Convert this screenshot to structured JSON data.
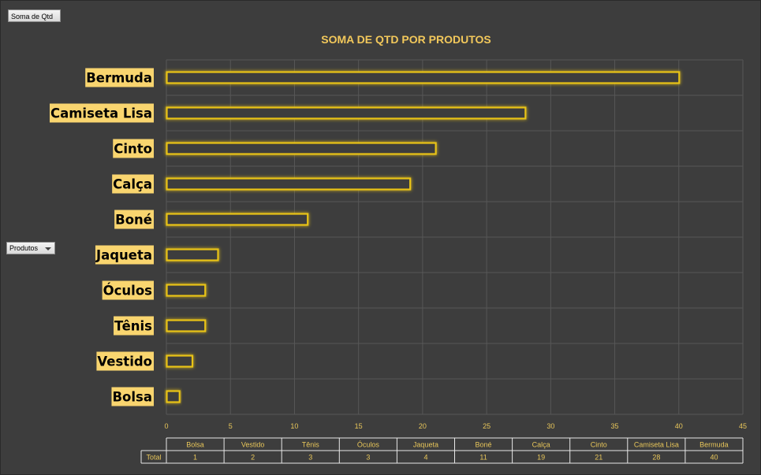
{
  "pivot": {
    "field_button_label": "Soma de Qtd",
    "filter_label": "Produtos",
    "table_row_label": "Total"
  },
  "chart_data": {
    "type": "bar",
    "orientation": "horizontal",
    "title": "SOMA DE QTD POR PRODUTOS",
    "categories": [
      "Bolsa",
      "Vestido",
      "Tênis",
      "Óculos",
      "Jaqueta",
      "Boné",
      "Calça",
      "Cinto",
      "Camiseta Lisa",
      "Bermuda"
    ],
    "values": [
      1,
      2,
      3,
      3,
      4,
      11,
      19,
      21,
      28,
      40
    ],
    "table_headers": [
      "Bolsa",
      "Vestido",
      "Tênis",
      "Óculos",
      "Jaqueta",
      "Boné",
      "Calça",
      "Cinto",
      "Camiseta Lisa",
      "Bermuda"
    ],
    "xlim": [
      0,
      45
    ],
    "x_ticks": [
      0,
      5,
      10,
      15,
      20,
      25,
      30,
      35,
      40,
      45
    ],
    "xlabel": "",
    "ylabel": "",
    "grid": true,
    "legend": "none",
    "colors": {
      "background": "#3d3d3d",
      "bar_outline": "#e8c318",
      "bar_fill": "#3d3d3d",
      "label_background": "#f9d56f",
      "title": "#f2c85b",
      "axis_text": "#e8c65a",
      "grid": "#575757"
    }
  }
}
